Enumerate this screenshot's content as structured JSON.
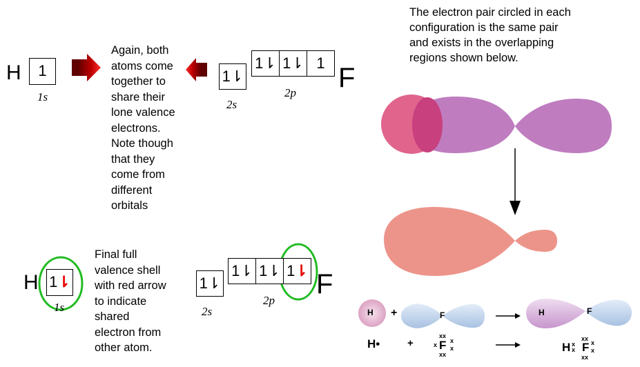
{
  "top": {
    "h_symbol": "H",
    "h_box": "1",
    "h_orbital": "1s",
    "f_symbol": "F",
    "f_2s_box": "1⇂",
    "f_2s_label": "2s",
    "f_2p_boxes": [
      "1⇂",
      "1⇂",
      "1"
    ],
    "f_2p_label": "2p",
    "middle_text": [
      "Again, both",
      "atoms come",
      "together to",
      "share their",
      "lone valence",
      "electrons.",
      "Note though",
      "that they",
      "come from",
      "different",
      "orbitals"
    ]
  },
  "bottom": {
    "h_symbol": "H",
    "h_box_up": "1",
    "h_box_down": "⇂",
    "h_orbital": "1s",
    "f_symbol": "F",
    "f_2s_box": "1⇂",
    "f_2s_label": "2s",
    "f_2p_boxes": [
      "1⇂",
      "1⇂"
    ],
    "f_2p_last_up": "1",
    "f_2p_last_down": "⇂",
    "f_2p_label": "2p",
    "final_text": [
      "Final full",
      "valence shell",
      "with red arrow",
      "to indicate",
      "shared",
      "electron from",
      "other atom."
    ]
  },
  "right": {
    "explanation": [
      "The electron pair circled in each",
      "configuration is the same pair",
      "and exists in the overlapping",
      "regions shown below."
    ],
    "eq_h": "H",
    "eq_f": "F",
    "eq_plus": "+",
    "prod_h": "H",
    "prod_f": "F",
    "lewis_h": "H•",
    "lewis_plus": "+",
    "lewis_f": "F",
    "lewis_prod_h": "H",
    "lewis_prod_f": "F"
  },
  "colors": {
    "pink_orbital": "#e0648c",
    "purple_orbital": "#bf7dbf",
    "overlap": "#c8407e",
    "salmon": "#ec948a",
    "green_circle": "#22bb22",
    "red_arrow": "#b00000",
    "blue_orbital": "#b8cfe8"
  }
}
